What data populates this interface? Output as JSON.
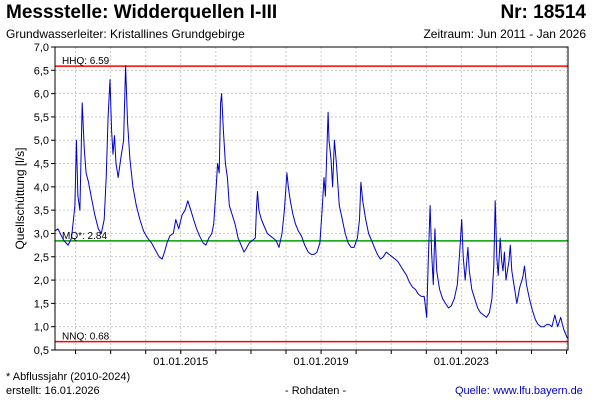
{
  "header": {
    "title": "Messstelle: Widderquellen I-III",
    "number": "Nr: 18514",
    "aquifer": "Grundwasserleiter: Kristallines Grundgebirge",
    "period": "Zeitraum: Jun 2011 - Jan 2026"
  },
  "footer": {
    "footnote": "* Abflussjahr (2010-2024)",
    "created": "erstellt:  16.01.2026",
    "rawdata": "- Rohdaten -",
    "source_label": "Quelle: ",
    "source_url": "www.lfu.bayern.de"
  },
  "colors": {
    "series": "#0000cc",
    "hhq": "#ff0000",
    "nnq": "#ff0000",
    "mq": "#00a000",
    "grid": "#c0c0c0",
    "plot_bg": "#ffffff"
  },
  "chart_data": {
    "type": "line",
    "title": "",
    "xlabel": "",
    "ylabel": "Quellschüttung [l/s]",
    "xlim": [
      "2011-06-01",
      "2026-01-16"
    ],
    "ylim": [
      0.5,
      7.0
    ],
    "yticks": [
      "0,5",
      "1,0",
      "1,5",
      "2,0",
      "2,5",
      "3,0",
      "3,5",
      "4,0",
      "4,5",
      "5,0",
      "5,5",
      "6,0",
      "6,5",
      "7,0"
    ],
    "xticks": [
      {
        "date": "2015-01-01",
        "label": "01.01.2015"
      },
      {
        "date": "2019-01-01",
        "label": "01.01.2019"
      },
      {
        "date": "2023-01-01",
        "label": "01.01.2023"
      }
    ],
    "grid": true,
    "reference_lines": [
      {
        "key": "hhq",
        "label": "HHQ: 6.59",
        "value": 6.59
      },
      {
        "key": "mq",
        "label": "MQ*: 2.84",
        "value": 2.84
      },
      {
        "key": "nnq",
        "label": "NNQ: 0.68",
        "value": 0.68
      }
    ],
    "series": [
      {
        "points": [
          [
            "2011-06-01",
            3.05
          ],
          [
            "2011-07-01",
            3.1
          ],
          [
            "2011-09-01",
            2.85
          ],
          [
            "2011-10-15",
            2.75
          ],
          [
            "2011-11-20",
            2.9
          ],
          [
            "2011-12-25",
            3.6
          ],
          [
            "2012-01-10",
            5.0
          ],
          [
            "2012-01-25",
            3.8
          ],
          [
            "2012-02-15",
            3.5
          ],
          [
            "2012-03-10",
            5.8
          ],
          [
            "2012-04-01",
            4.8
          ],
          [
            "2012-04-20",
            4.3
          ],
          [
            "2012-05-15",
            4.1
          ],
          [
            "2012-06-20",
            3.7
          ],
          [
            "2012-07-20",
            3.4
          ],
          [
            "2012-08-25",
            3.1
          ],
          [
            "2012-09-25",
            3.0
          ],
          [
            "2012-10-25",
            3.3
          ],
          [
            "2012-11-15",
            4.2
          ],
          [
            "2012-12-05",
            5.5
          ],
          [
            "2012-12-25",
            6.3
          ],
          [
            "2013-01-10",
            5.2
          ],
          [
            "2013-01-25",
            4.7
          ],
          [
            "2013-02-10",
            5.1
          ],
          [
            "2013-02-25",
            4.5
          ],
          [
            "2013-03-20",
            4.2
          ],
          [
            "2013-04-15",
            4.6
          ],
          [
            "2013-05-15",
            5.0
          ],
          [
            "2013-06-05",
            6.6
          ],
          [
            "2013-06-25",
            5.4
          ],
          [
            "2013-07-20",
            4.6
          ],
          [
            "2013-08-20",
            4.0
          ],
          [
            "2013-09-25",
            3.6
          ],
          [
            "2013-11-01",
            3.3
          ],
          [
            "2013-12-10",
            3.05
          ],
          [
            "2014-01-20",
            2.9
          ],
          [
            "2014-03-01",
            2.8
          ],
          [
            "2014-04-10",
            2.65
          ],
          [
            "2014-05-20",
            2.5
          ],
          [
            "2014-06-20",
            2.45
          ],
          [
            "2014-07-15",
            2.6
          ],
          [
            "2014-08-10",
            2.8
          ],
          [
            "2014-09-10",
            2.95
          ],
          [
            "2014-10-15",
            3.0
          ],
          [
            "2014-11-10",
            3.3
          ],
          [
            "2014-12-10",
            3.1
          ],
          [
            "2015-01-15",
            3.4
          ],
          [
            "2015-02-15",
            3.5
          ],
          [
            "2015-03-15",
            3.7
          ],
          [
            "2015-04-15",
            3.5
          ],
          [
            "2015-05-15",
            3.3
          ],
          [
            "2015-06-15",
            3.1
          ],
          [
            "2015-07-15",
            2.95
          ],
          [
            "2015-08-20",
            2.8
          ],
          [
            "2015-09-20",
            2.75
          ],
          [
            "2015-10-20",
            2.9
          ],
          [
            "2015-11-20",
            3.0
          ],
          [
            "2015-12-10",
            3.2
          ],
          [
            "2016-01-05",
            4.0
          ],
          [
            "2016-01-20",
            4.5
          ],
          [
            "2016-02-05",
            4.3
          ],
          [
            "2016-02-20",
            5.8
          ],
          [
            "2016-03-01",
            6.0
          ],
          [
            "2016-03-20",
            5.2
          ],
          [
            "2016-04-10",
            4.5
          ],
          [
            "2016-05-01",
            4.2
          ],
          [
            "2016-05-20",
            3.6
          ],
          [
            "2016-06-20",
            3.4
          ],
          [
            "2016-07-20",
            3.2
          ],
          [
            "2016-08-20",
            2.9
          ],
          [
            "2016-09-20",
            2.75
          ],
          [
            "2016-10-20",
            2.6
          ],
          [
            "2016-11-20",
            2.7
          ],
          [
            "2016-12-15",
            2.8
          ],
          [
            "2017-01-15",
            2.85
          ],
          [
            "2017-02-15",
            2.9
          ],
          [
            "2017-03-01",
            3.6
          ],
          [
            "2017-03-10",
            3.9
          ],
          [
            "2017-03-25",
            3.5
          ],
          [
            "2017-04-20",
            3.3
          ],
          [
            "2017-05-20",
            3.15
          ],
          [
            "2017-06-20",
            3.0
          ],
          [
            "2017-07-20",
            2.95
          ],
          [
            "2017-08-20",
            2.9
          ],
          [
            "2017-09-20",
            2.85
          ],
          [
            "2017-10-20",
            2.7
          ],
          [
            "2017-11-20",
            3.0
          ],
          [
            "2017-12-15",
            3.5
          ],
          [
            "2018-01-10",
            4.3
          ],
          [
            "2018-01-25",
            4.0
          ],
          [
            "2018-02-15",
            3.7
          ],
          [
            "2018-03-15",
            3.4
          ],
          [
            "2018-04-10",
            3.2
          ],
          [
            "2018-05-10",
            3.05
          ],
          [
            "2018-06-10",
            2.95
          ],
          [
            "2018-07-15",
            2.75
          ],
          [
            "2018-08-20",
            2.6
          ],
          [
            "2018-09-20",
            2.55
          ],
          [
            "2018-10-20",
            2.55
          ],
          [
            "2018-11-20",
            2.6
          ],
          [
            "2018-12-20",
            2.8
          ],
          [
            "2019-01-15",
            3.6
          ],
          [
            "2019-02-01",
            4.2
          ],
          [
            "2019-02-15",
            3.8
          ],
          [
            "2019-03-15",
            5.6
          ],
          [
            "2019-03-25",
            5.0
          ],
          [
            "2019-04-15",
            4.6
          ],
          [
            "2019-05-01",
            4.0
          ],
          [
            "2019-05-20",
            5.0
          ],
          [
            "2019-06-10",
            4.5
          ],
          [
            "2019-07-10",
            3.6
          ],
          [
            "2019-08-10",
            3.3
          ],
          [
            "2019-09-10",
            3.0
          ],
          [
            "2019-10-10",
            2.8
          ],
          [
            "2019-11-10",
            2.7
          ],
          [
            "2019-12-10",
            2.7
          ],
          [
            "2020-01-15",
            2.9
          ],
          [
            "2020-02-05",
            3.3
          ],
          [
            "2020-02-20",
            4.1
          ],
          [
            "2020-03-10",
            3.7
          ],
          [
            "2020-04-10",
            3.3
          ],
          [
            "2020-05-10",
            3.0
          ],
          [
            "2020-06-10",
            2.85
          ],
          [
            "2020-07-10",
            2.7
          ],
          [
            "2020-08-10",
            2.55
          ],
          [
            "2020-09-10",
            2.45
          ],
          [
            "2020-10-10",
            2.5
          ],
          [
            "2020-11-10",
            2.6
          ],
          [
            "2020-12-10",
            2.55
          ],
          [
            "2021-01-10",
            2.5
          ],
          [
            "2021-02-10",
            2.45
          ],
          [
            "2021-03-10",
            2.4
          ],
          [
            "2021-04-10",
            2.3
          ],
          [
            "2021-05-10",
            2.2
          ],
          [
            "2021-06-10",
            2.1
          ],
          [
            "2021-07-10",
            1.95
          ],
          [
            "2021-08-10",
            1.85
          ],
          [
            "2021-09-10",
            1.8
          ],
          [
            "2021-10-10",
            1.7
          ],
          [
            "2021-11-10",
            1.65
          ],
          [
            "2021-12-10",
            1.65
          ],
          [
            "2022-01-05",
            1.2
          ],
          [
            "2022-01-20",
            2.3
          ],
          [
            "2022-02-10",
            3.6
          ],
          [
            "2022-02-25",
            2.6
          ],
          [
            "2022-03-15",
            1.9
          ],
          [
            "2022-04-01",
            3.1
          ],
          [
            "2022-04-20",
            2.2
          ],
          [
            "2022-05-20",
            1.8
          ],
          [
            "2022-06-20",
            1.6
          ],
          [
            "2022-07-20",
            1.5
          ],
          [
            "2022-08-20",
            1.4
          ],
          [
            "2022-09-20",
            1.45
          ],
          [
            "2022-10-20",
            1.6
          ],
          [
            "2022-11-20",
            1.9
          ],
          [
            "2022-12-15",
            2.6
          ],
          [
            "2023-01-05",
            3.3
          ],
          [
            "2023-01-20",
            2.5
          ],
          [
            "2023-02-10",
            2.0
          ],
          [
            "2023-03-10",
            2.7
          ],
          [
            "2023-03-25",
            2.2
          ],
          [
            "2023-04-20",
            1.8
          ],
          [
            "2023-05-20",
            1.6
          ],
          [
            "2023-06-20",
            1.4
          ],
          [
            "2023-07-20",
            1.3
          ],
          [
            "2023-08-20",
            1.25
          ],
          [
            "2023-09-20",
            1.2
          ],
          [
            "2023-10-20",
            1.3
          ],
          [
            "2023-11-15",
            1.6
          ],
          [
            "2023-12-05",
            2.3
          ],
          [
            "2023-12-20",
            3.7
          ],
          [
            "2024-01-05",
            2.5
          ],
          [
            "2024-01-20",
            2.1
          ],
          [
            "2024-02-10",
            2.9
          ],
          [
            "2024-02-25",
            2.4
          ],
          [
            "2024-03-10",
            2.2
          ],
          [
            "2024-03-25",
            2.6
          ],
          [
            "2024-04-10",
            2.0
          ],
          [
            "2024-05-10",
            2.4
          ],
          [
            "2024-05-25",
            2.75
          ],
          [
            "2024-06-10",
            2.2
          ],
          [
            "2024-07-10",
            1.8
          ],
          [
            "2024-08-01",
            1.5
          ],
          [
            "2024-09-01",
            1.85
          ],
          [
            "2024-10-01",
            2.05
          ],
          [
            "2024-10-20",
            2.3
          ],
          [
            "2024-11-10",
            1.9
          ],
          [
            "2024-12-10",
            1.6
          ],
          [
            "2025-01-10",
            1.35
          ],
          [
            "2025-02-10",
            1.15
          ],
          [
            "2025-03-10",
            1.05
          ],
          [
            "2025-04-10",
            1.0
          ],
          [
            "2025-05-10",
            1.0
          ],
          [
            "2025-06-10",
            1.05
          ],
          [
            "2025-07-01",
            1.05
          ],
          [
            "2025-08-01",
            1.0
          ],
          [
            "2025-09-01",
            1.25
          ],
          [
            "2025-10-01",
            1.0
          ],
          [
            "2025-11-01",
            1.2
          ],
          [
            "2025-12-01",
            0.95
          ],
          [
            "2026-01-10",
            0.75
          ]
        ]
      }
    ]
  }
}
